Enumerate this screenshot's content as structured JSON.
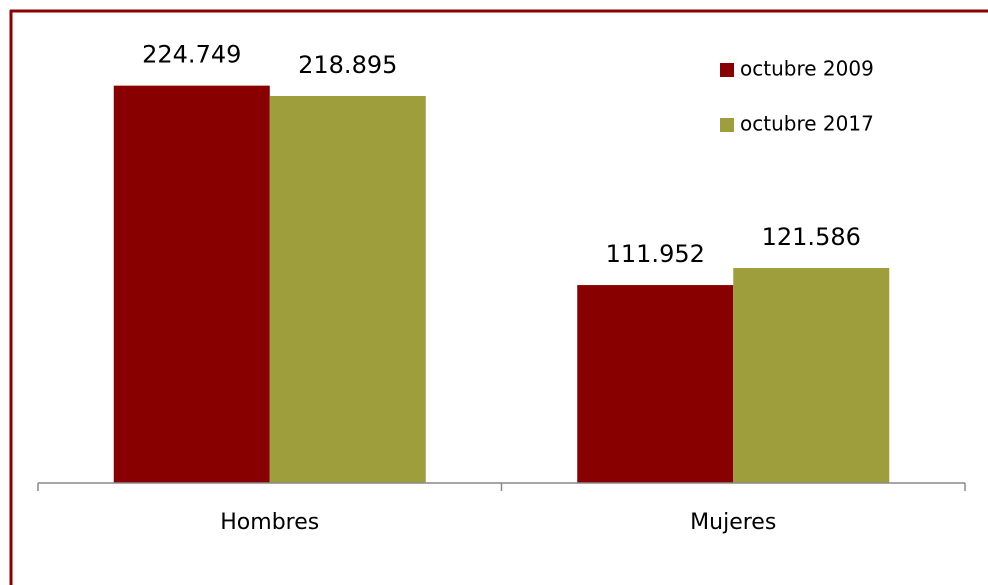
{
  "chart_data": {
    "type": "bar",
    "categories": [
      "Hombres",
      "Mujeres"
    ],
    "series": [
      {
        "name": "octubre 2009",
        "color": "#880000",
        "values": [
          224749,
          111952
        ],
        "value_labels": [
          "224.749",
          "111.952"
        ]
      },
      {
        "name": "octubre 2017",
        "color": "#9e9e3c",
        "values": [
          218895,
          121586
        ],
        "value_labels": [
          "218.895",
          "121.586"
        ]
      }
    ],
    "ylim": [
      0,
      250000
    ],
    "legend": "top-right"
  }
}
